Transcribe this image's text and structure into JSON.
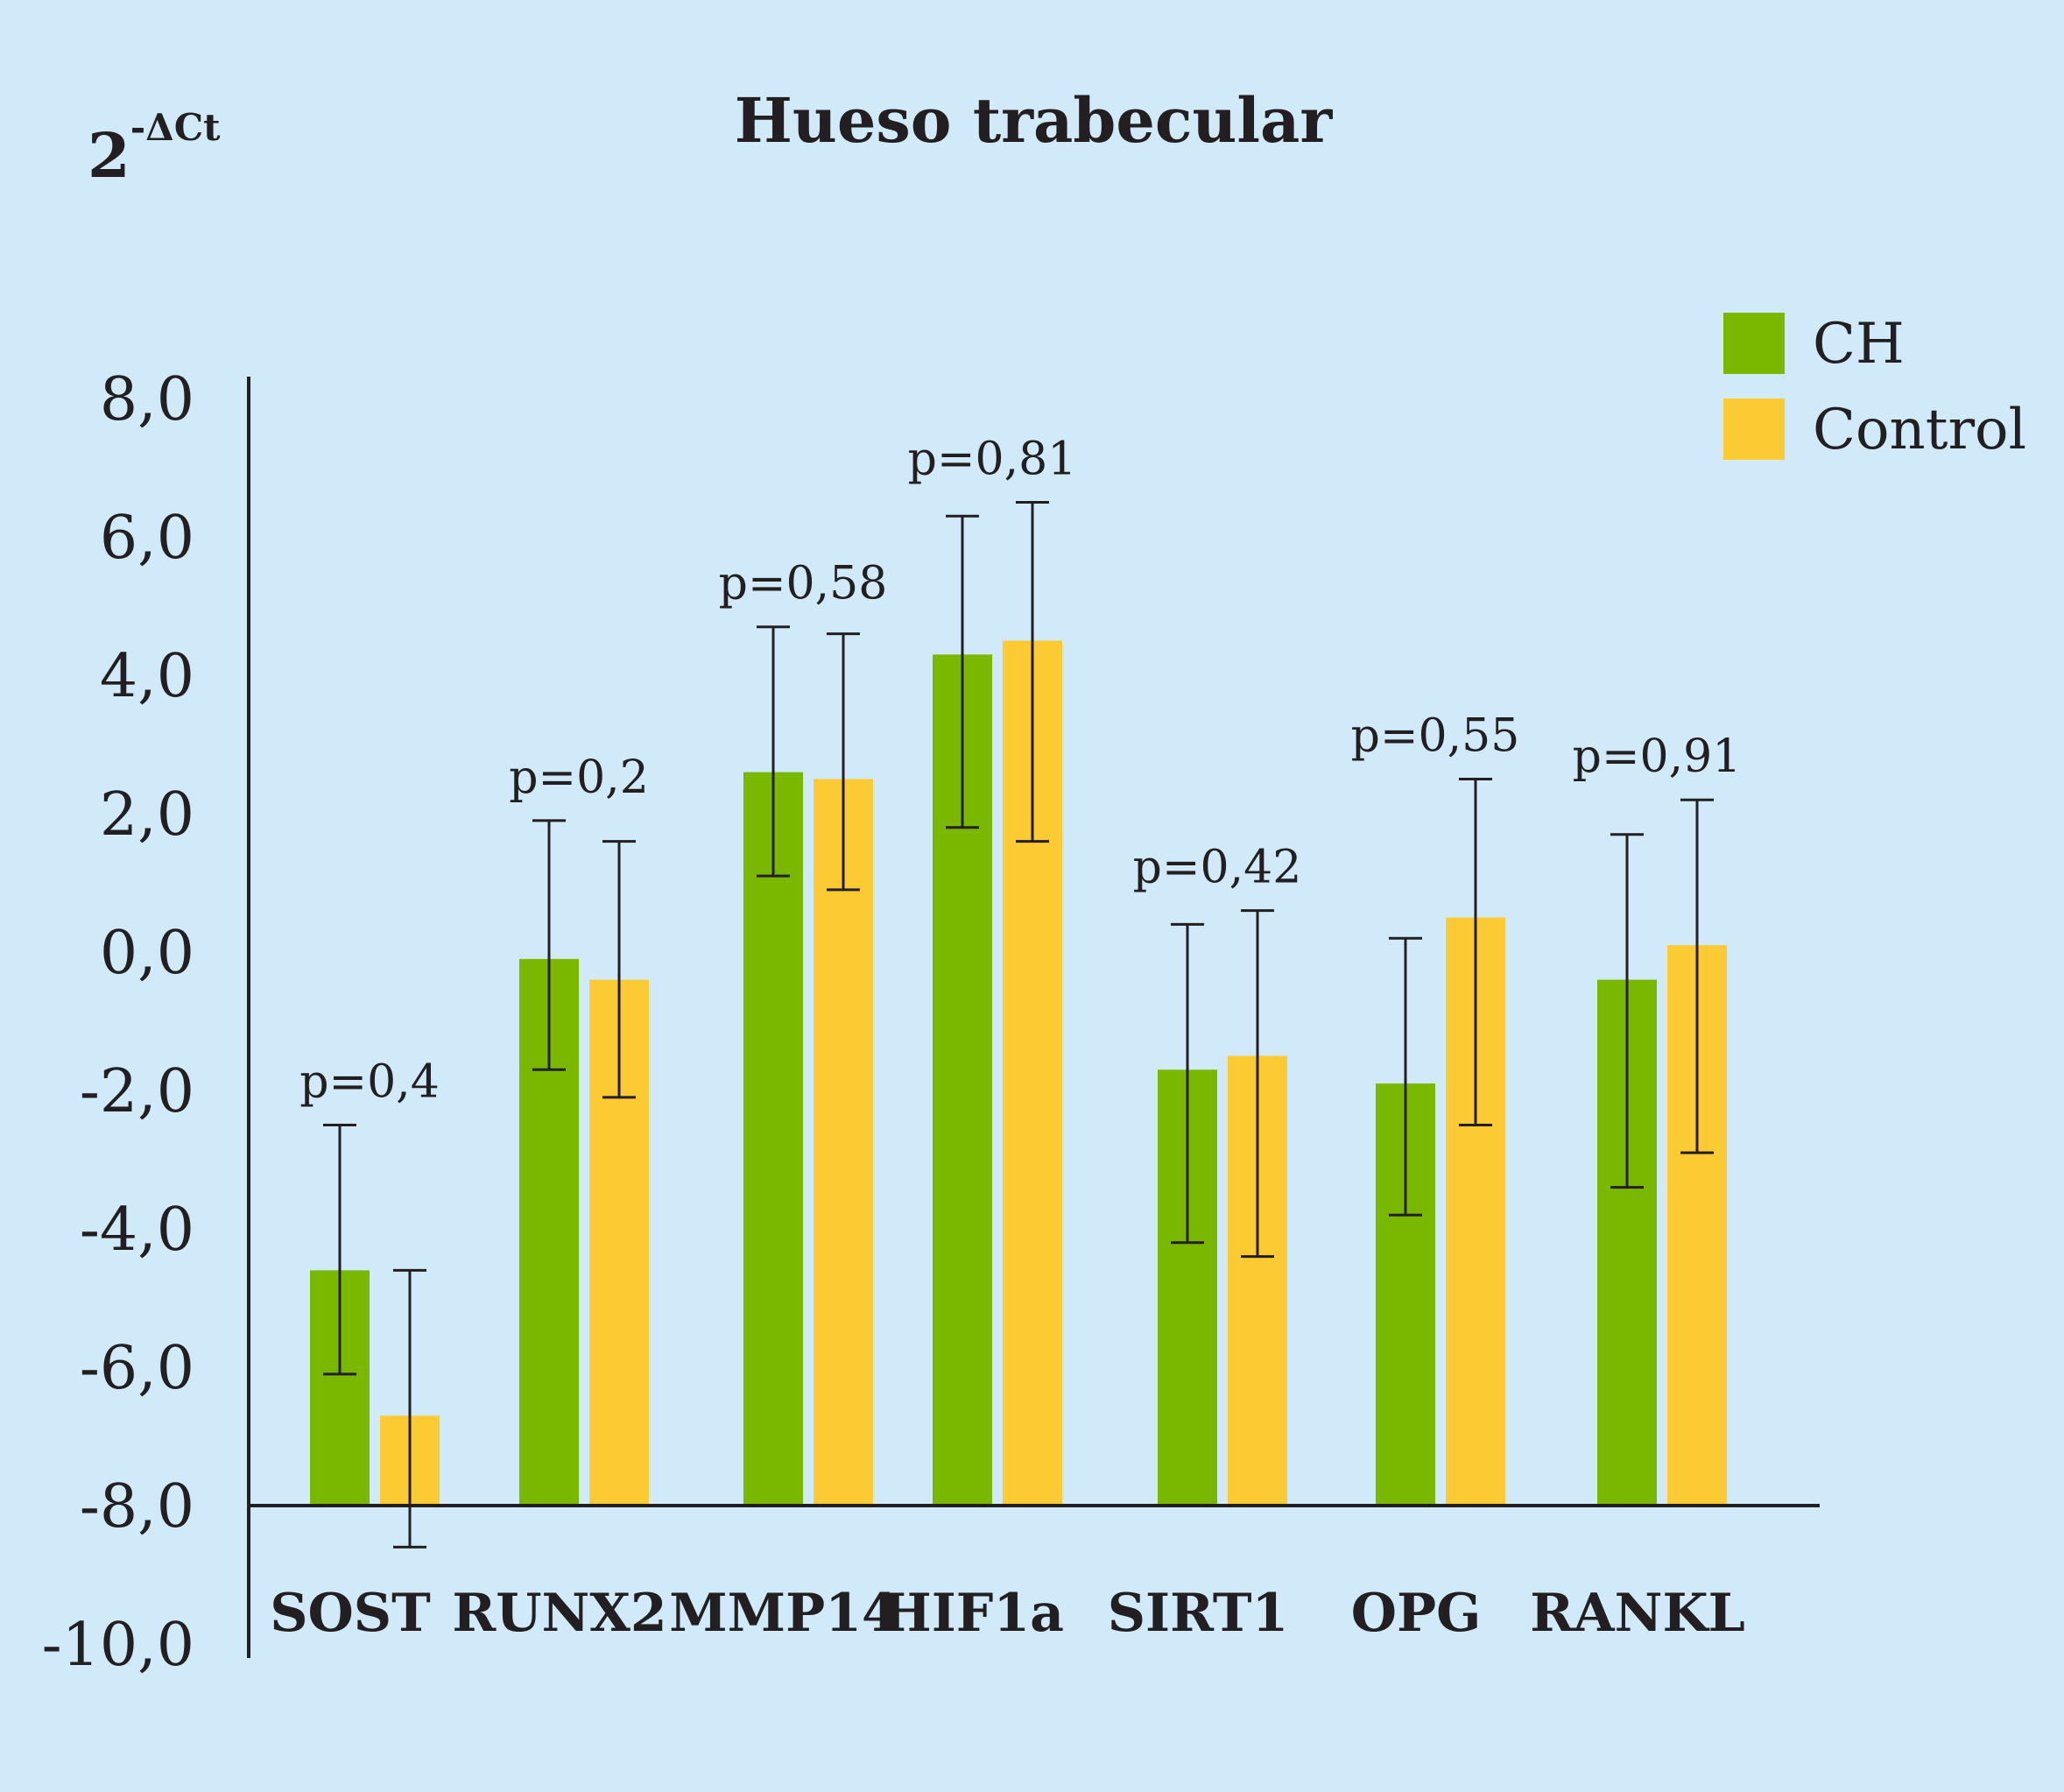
{
  "chart_data": {
    "type": "bar",
    "title": "Hueso trabecular",
    "ylabel_base": "2",
    "ylabel_sup": "-ΔCt",
    "xlabel": "",
    "ylim": [
      -10,
      8
    ],
    "yticks": [
      8,
      6,
      4,
      2,
      0,
      -2,
      -4,
      -6,
      -8,
      -10
    ],
    "ytick_labels": [
      "8,0",
      "6,0",
      "4,0",
      "2,0",
      "0,0",
      "-2,0",
      "-4,0",
      "-6,0",
      "-8,0",
      "-10,0"
    ],
    "baseline": -8,
    "categories": [
      "SOST",
      "RUNX2",
      "MMP14",
      "HIF1a",
      "SIRT1",
      "OPG",
      "RANKL"
    ],
    "series": [
      {
        "name": "CH",
        "color": "#7ab800",
        "values": [
          -4.6,
          -0.1,
          2.6,
          4.3,
          -1.7,
          -1.9,
          -0.4
        ],
        "err_low": [
          -6.1,
          -1.7,
          1.1,
          1.8,
          -4.2,
          -3.8,
          -3.4
        ],
        "err_high": [
          -2.5,
          1.9,
          4.7,
          6.3,
          0.4,
          0.2,
          1.7
        ]
      },
      {
        "name": "Control",
        "color": "#fccb34",
        "values": [
          -6.7,
          -0.4,
          2.5,
          4.5,
          -1.5,
          0.5,
          0.1
        ],
        "err_low": [
          -8.6,
          -2.1,
          0.9,
          1.6,
          -4.4,
          -2.5,
          -2.9
        ],
        "err_high": [
          -4.6,
          1.6,
          4.6,
          6.5,
          0.6,
          2.5,
          2.2
        ]
      }
    ],
    "pvalues": [
      "p=0,4",
      "p=0,2",
      "p=0,58",
      "p=0,81",
      "p=0,42",
      "p=0,55",
      "p=0,91"
    ],
    "legend": {
      "position": "top-right",
      "entries": [
        "CH",
        "Control"
      ]
    },
    "grid": false
  }
}
